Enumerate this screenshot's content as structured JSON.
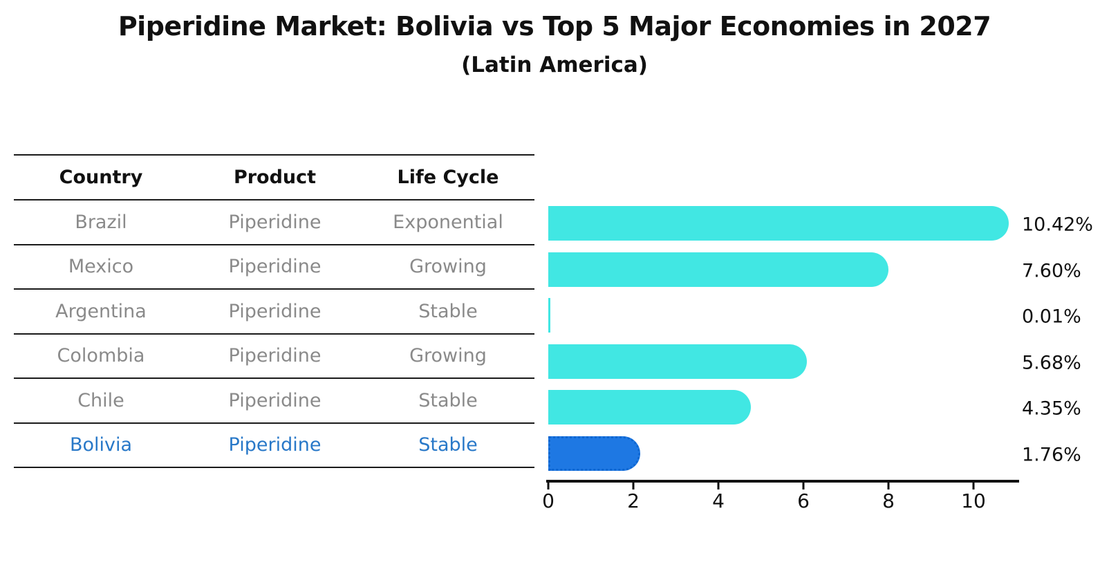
{
  "header": {
    "title": "Piperidine Market: Bolivia vs Top 5 Major Economies in 2027",
    "subtitle": "(Latin America)"
  },
  "table": {
    "headers": [
      "Country",
      "Product",
      "Life Cycle"
    ],
    "rows": [
      {
        "country": "Brazil",
        "product": "Piperidine",
        "life_cycle": "Exponential",
        "highlight": false
      },
      {
        "country": "Mexico",
        "product": "Piperidine",
        "life_cycle": "Growing",
        "highlight": false
      },
      {
        "country": "Argentina",
        "product": "Piperidine",
        "life_cycle": "Stable",
        "highlight": false
      },
      {
        "country": "Colombia",
        "product": "Piperidine",
        "life_cycle": "Growing",
        "highlight": false
      },
      {
        "country": "Chile",
        "product": "Piperidine",
        "life_cycle": "Stable",
        "highlight": false
      },
      {
        "country": "Bolivia",
        "product": "Piperidine",
        "life_cycle": "Stable",
        "highlight": true
      }
    ]
  },
  "chart_data": {
    "type": "bar",
    "orientation": "horizontal",
    "title": "Piperidine Market: Bolivia vs Top 5 Major Economies in 2027",
    "subtitle": "(Latin America)",
    "categories": [
      "Brazil",
      "Mexico",
      "Argentina",
      "Colombia",
      "Chile",
      "Bolivia"
    ],
    "values": [
      10.42,
      7.6,
      0.01,
      5.68,
      4.35,
      1.76
    ],
    "value_labels": [
      "10.42%",
      "7.60%",
      "0.01%",
      "5.68%",
      "4.35%",
      "1.76%"
    ],
    "x_ticks": [
      0,
      2,
      4,
      6,
      8,
      10
    ],
    "xlim": [
      0,
      11.05
    ],
    "grid": false,
    "legend": "none",
    "bar_color": "#41e7e3",
    "highlight_color": "#1e78e3",
    "highlight_index": 5,
    "highlight_style": "dotted-border",
    "highlight_text_color": "#2878c8"
  }
}
